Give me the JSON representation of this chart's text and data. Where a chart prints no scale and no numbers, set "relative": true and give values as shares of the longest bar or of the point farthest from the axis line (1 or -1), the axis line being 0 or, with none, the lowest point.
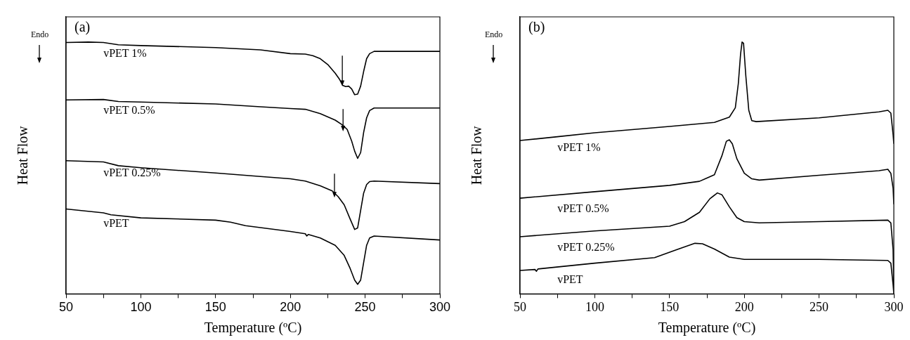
{
  "chart_data": [
    {
      "type": "line",
      "relative": true,
      "xlabel": "Temperature (ºC)",
      "ylabel": "Heat Flow",
      "annotations": [
        "(a)",
        "Endo"
      ],
      "xlim": [
        50,
        300
      ],
      "xticks": [
        50,
        {
          "value": 75,
          "label": null
        },
        100,
        {
          "value": 125,
          "label": null
        },
        150,
        {
          "value": 175,
          "label": null
        },
        200,
        {
          "value": 225,
          "label": null
        },
        250,
        {
          "value": 275,
          "label": null
        },
        300
      ],
      "legend": false,
      "marker": "none",
      "line_style": "solid",
      "series": [
        {
          "name": "vPET 1%",
          "color": "#000000",
          "x": [
            50,
            65,
            75,
            85,
            100,
            150,
            180,
            200,
            210,
            215,
            220,
            225,
            230,
            233,
            235,
            237,
            239,
            241,
            243,
            245,
            247,
            249,
            251,
            253,
            256,
            300
          ],
          "values": [
            0.998,
            1,
            0.998,
            0.989,
            0.986,
            0.978,
            0.969,
            0.954,
            0.952,
            0.946,
            0.934,
            0.911,
            0.876,
            0.851,
            0.828,
            0.823,
            0.825,
            0.814,
            0.791,
            0.793,
            0.825,
            0.883,
            0.934,
            0.954,
            0.963,
            0.963
          ]
        },
        {
          "name": "vPET 0.5%",
          "color": "#000000",
          "x": [
            50,
            75,
            85,
            100,
            150,
            180,
            200,
            210,
            220,
            230,
            235,
            238,
            241,
            243,
            245,
            247,
            249,
            251,
            253,
            256,
            300
          ],
          "values": [
            0.77,
            0.772,
            0.764,
            0.762,
            0.754,
            0.743,
            0.736,
            0.733,
            0.716,
            0.69,
            0.67,
            0.653,
            0.607,
            0.567,
            0.538,
            0.561,
            0.641,
            0.699,
            0.728,
            0.738,
            0.738
          ]
        },
        {
          "name": "vPET 0.25%",
          "color": "#000000",
          "x": [
            50,
            75,
            85,
            100,
            150,
            180,
            200,
            210,
            220,
            228,
            232,
            236,
            240,
            243,
            245,
            247,
            249,
            251,
            253,
            256,
            300
          ],
          "values": [
            0.529,
            0.524,
            0.509,
            0.501,
            0.48,
            0.466,
            0.457,
            0.448,
            0.429,
            0.409,
            0.386,
            0.354,
            0.297,
            0.256,
            0.262,
            0.331,
            0.4,
            0.434,
            0.446,
            0.448,
            0.438
          ]
        },
        {
          "name": "vPET",
          "color": "#000000",
          "x": [
            50,
            75,
            80,
            100,
            150,
            160,
            170,
            200,
            210,
            211,
            212,
            220,
            230,
            236,
            240,
            243,
            245,
            247,
            249,
            251,
            253,
            256,
            300
          ],
          "values": [
            0.337,
            0.322,
            0.314,
            0.302,
            0.293,
            0.285,
            0.271,
            0.248,
            0.239,
            0.23,
            0.236,
            0.222,
            0.193,
            0.153,
            0.101,
            0.055,
            0.038,
            0.055,
            0.124,
            0.193,
            0.222,
            0.23,
            0.214
          ]
        }
      ]
    },
    {
      "type": "line",
      "relative": true,
      "xlabel": "Temperature (ºC)",
      "ylabel": "Heat Flow",
      "annotations": [
        "(b)",
        "Endo"
      ],
      "xlim": [
        50,
        300
      ],
      "xticks": [
        50,
        {
          "value": 75,
          "label": null
        },
        100,
        {
          "value": 125,
          "label": null
        },
        150,
        {
          "value": 175,
          "label": null
        },
        200,
        {
          "value": 225,
          "label": null
        },
        250,
        {
          "value": 275,
          "label": null
        },
        300
      ],
      "legend": false,
      "marker": "none",
      "line_style": "solid",
      "series": [
        {
          "name": "vPET 1%",
          "color": "#000000",
          "x": [
            50,
            75,
            100,
            150,
            180,
            190,
            194,
            196,
            197.5,
            198.5,
            199.5,
            201,
            203,
            205,
            208,
            250,
            290,
            296,
            298,
            299.5,
            300
          ],
          "values": [
            0.609,
            0.624,
            0.64,
            0.665,
            0.681,
            0.702,
            0.739,
            0.835,
            0.952,
            1,
            0.995,
            0.867,
            0.729,
            0.688,
            0.684,
            0.699,
            0.723,
            0.729,
            0.718,
            0.633,
            0.596
          ]
        },
        {
          "name": "vPET 0.5%",
          "color": "#000000",
          "x": [
            50,
            100,
            150,
            170,
            180,
            185,
            188,
            190,
            192,
            195,
            200,
            205,
            210,
            250,
            290,
            296,
            298,
            299.5,
            300
          ],
          "values": [
            0.38,
            0.406,
            0.431,
            0.447,
            0.473,
            0.548,
            0.606,
            0.612,
            0.596,
            0.537,
            0.479,
            0.457,
            0.452,
            0.471,
            0.489,
            0.495,
            0.479,
            0.42,
            0.356
          ]
        },
        {
          "name": "vPET 0.25%",
          "color": "#000000",
          "x": [
            50,
            100,
            150,
            160,
            170,
            177,
            182,
            185,
            190,
            195,
            200,
            210,
            250,
            296,
            298,
            299.5,
            300
          ],
          "values": [
            0.227,
            0.25,
            0.269,
            0.287,
            0.324,
            0.378,
            0.401,
            0.394,
            0.346,
            0.303,
            0.287,
            0.282,
            0.287,
            0.293,
            0.282,
            0.176,
            0.016
          ]
        },
        {
          "name": "vPET",
          "color": "#000000",
          "x": [
            50,
            60,
            61,
            62,
            100,
            140,
            155,
            167,
            172,
            180,
            190,
            200,
            250,
            296,
            298,
            299.5,
            300
          ],
          "values": [
            0.093,
            0.097,
            0.09,
            0.099,
            0.122,
            0.144,
            0.176,
            0.201,
            0.199,
            0.178,
            0.146,
            0.137,
            0.137,
            0.133,
            0.122,
            0.037,
            0
          ]
        }
      ]
    }
  ]
}
